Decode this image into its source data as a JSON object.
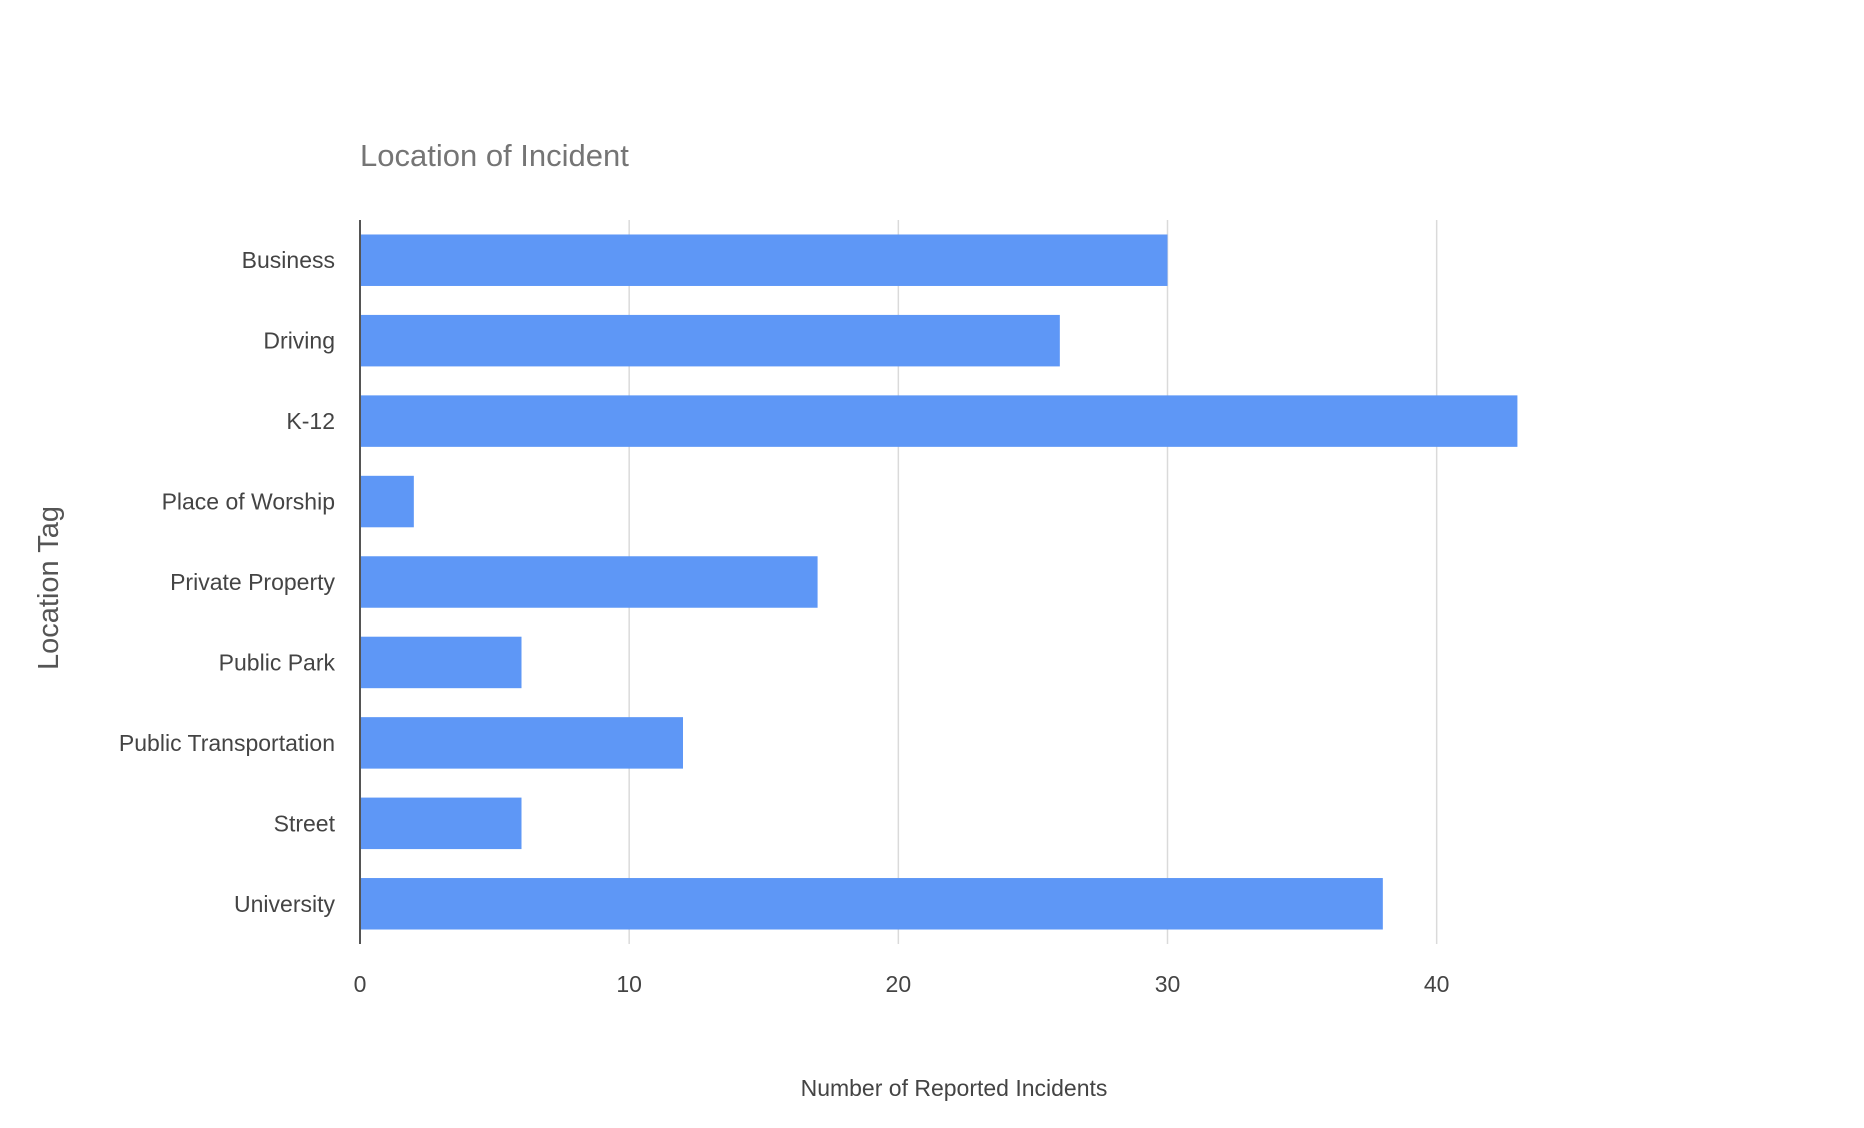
{
  "chart_data": {
    "type": "bar",
    "orientation": "horizontal",
    "title": "Location of Incident",
    "xlabel": "Number of Reported Incidents",
    "ylabel": "Location Tag",
    "categories": [
      "Business",
      "Driving",
      "K-12",
      "Place of Worship",
      "Private Property",
      "Public Park",
      "Public Transportation",
      "Street",
      "University"
    ],
    "values": [
      30,
      26,
      43,
      2,
      17,
      6,
      12,
      6,
      38
    ],
    "xlim": [
      0,
      48
    ],
    "xticks": [
      0,
      10,
      20,
      30,
      40
    ],
    "grid": true,
    "legend": "none",
    "bar_color": "#5e97f6",
    "grid_color": "#dadada",
    "axis_color": "#555555"
  }
}
